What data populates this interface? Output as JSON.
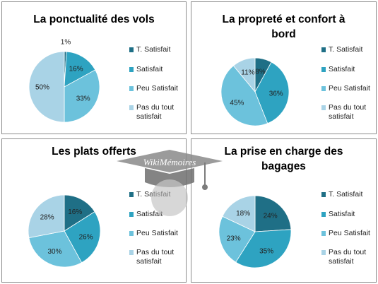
{
  "watermark": {
    "text": "WikiMémoires"
  },
  "colors": [
    "#1f6f86",
    "#2ea3c1",
    "#6cc2dc",
    "#a9d3e6"
  ],
  "legend_labels": [
    [
      "T. Satisfait"
    ],
    [
      "Satisfait"
    ],
    [
      "Peu Satisfait"
    ],
    [
      "Pas du tout",
      "satisfait"
    ]
  ],
  "chart_data": [
    {
      "type": "pie",
      "title": [
        "La ponctualité des vols"
      ],
      "categories": [
        "T. Satisfait",
        "Satisfait",
        "Peu Satisfait",
        "Pas du tout satisfait"
      ],
      "values": [
        1,
        16,
        33,
        50
      ],
      "labels": [
        "1%",
        "16%",
        "33%",
        "50%"
      ]
    },
    {
      "type": "pie",
      "title": [
        "La propreté et confort à",
        "bord"
      ],
      "categories": [
        "T. Satisfait",
        "Satisfait",
        "Peu Satisfait",
        "Pas du tout satisfait"
      ],
      "values": [
        8,
        36,
        45,
        11
      ],
      "labels": [
        "8%",
        "36%",
        "45%",
        "11%"
      ]
    },
    {
      "type": "pie",
      "title": [
        "Les plats offerts"
      ],
      "categories": [
        "T. Satisfait",
        "Satisfait",
        "Peu Satisfait",
        "Pas du tout satisfait"
      ],
      "values": [
        16,
        26,
        30,
        28
      ],
      "labels": [
        "16%",
        "26%",
        "30%",
        "28%"
      ]
    },
    {
      "type": "pie",
      "title": [
        "La prise en charge des",
        "bagages"
      ],
      "categories": [
        "T. Satisfait",
        "Satisfait",
        "Peu Satisfait",
        "Pas du tout satisfait"
      ],
      "values": [
        24,
        35,
        23,
        18
      ],
      "labels": [
        "24%",
        "35%",
        "23%",
        "18%"
      ]
    }
  ]
}
